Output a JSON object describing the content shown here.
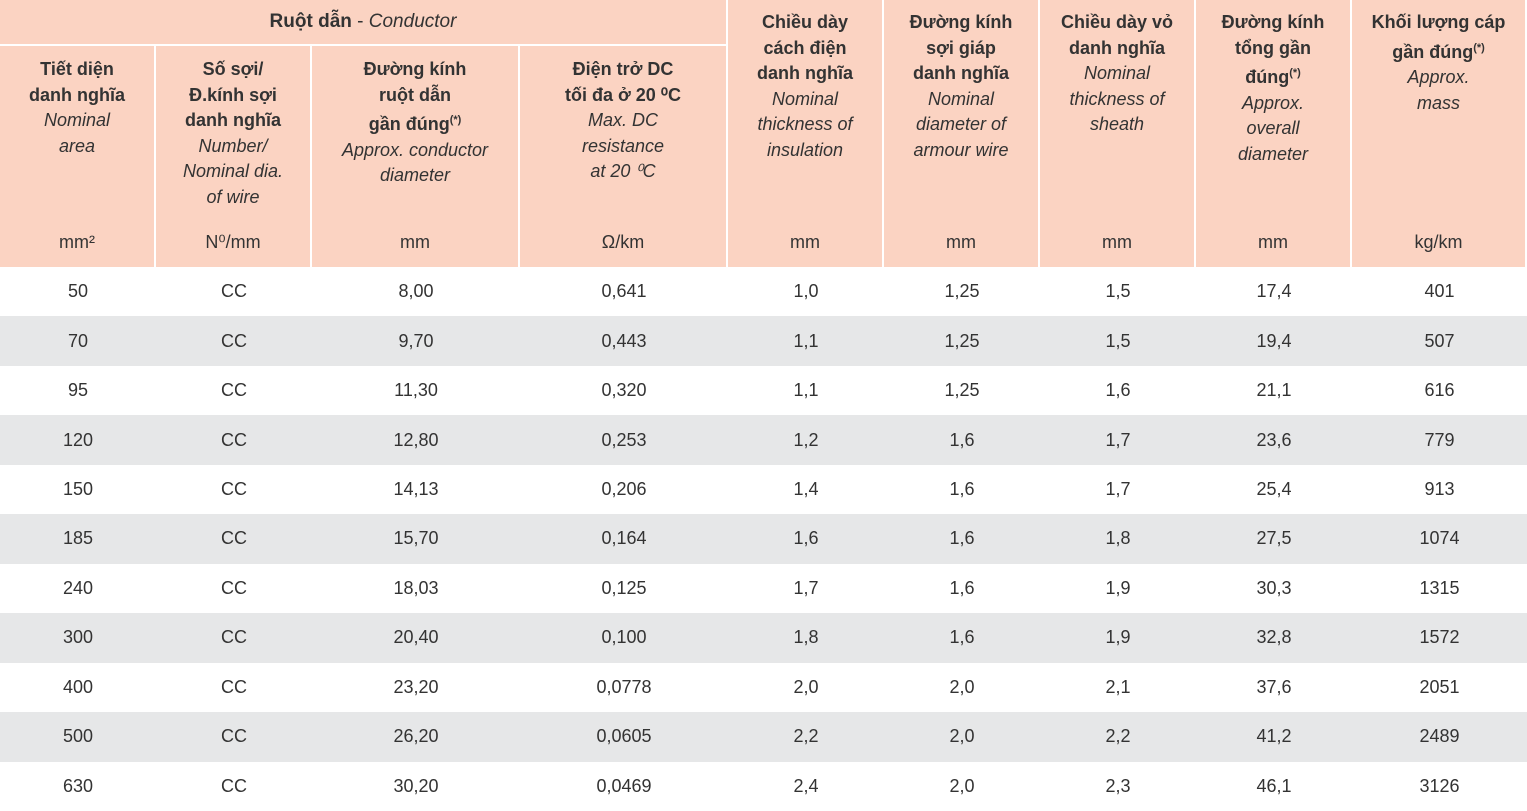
{
  "header": {
    "group": {
      "vi": "Ruột dẫn",
      "separator": "-",
      "en": "Conductor"
    },
    "columns": [
      {
        "vi": [
          "Tiết diện",
          "danh nghĩa"
        ],
        "en": [
          "Nominal",
          "area"
        ],
        "unit": "mm²"
      },
      {
        "vi": [
          "Số sợi/",
          "Đ.kính sợi",
          "danh nghĩa"
        ],
        "en": [
          "Number/",
          "Nominal dia.",
          "of wire"
        ],
        "unit": "N⁰/mm"
      },
      {
        "vi": [
          "Đường kính",
          "ruột dẫn",
          "gần đúng"
        ],
        "sup": "(*)",
        "en": [
          "Approx. conductor",
          "diameter"
        ],
        "unit": "mm"
      },
      {
        "vi": [
          "Điện trở DC",
          "tối đa ở 20 ⁰C"
        ],
        "en": [
          "Max. DC",
          "resistance",
          "at 20 ⁰C"
        ],
        "unit": "Ω/km"
      },
      {
        "vi": [
          "Chiều dày",
          "cách điện",
          "danh nghĩa"
        ],
        "en": [
          "Nominal",
          "thickness of",
          "insulation"
        ],
        "unit": "mm"
      },
      {
        "vi": [
          "Đường kính",
          "sợi giáp",
          "danh nghĩa"
        ],
        "en": [
          "Nominal",
          "diameter of",
          "armour wire"
        ],
        "unit": "mm"
      },
      {
        "vi": [
          "Chiều dày vỏ",
          "danh nghĩa"
        ],
        "en": [
          "Nominal",
          "thickness of",
          "sheath"
        ],
        "unit": "mm"
      },
      {
        "vi": [
          "Đường kính",
          "tổng gần",
          "đúng"
        ],
        "sup": "(*)",
        "en": [
          "Approx.",
          "overall",
          "diameter"
        ],
        "unit": "mm"
      },
      {
        "vi": [
          "Khối lượng cáp",
          "gần đúng"
        ],
        "sup": "(*)",
        "en": [
          "Approx.",
          "mass"
        ],
        "unit": "kg/km"
      }
    ]
  },
  "table": {
    "rows": [
      [
        "50",
        "CC",
        "8,00",
        "0,641",
        "1,0",
        "1,25",
        "1,5",
        "17,4",
        "401"
      ],
      [
        "70",
        "CC",
        "9,70",
        "0,443",
        "1,1",
        "1,25",
        "1,5",
        "19,4",
        "507"
      ],
      [
        "95",
        "CC",
        "11,30",
        "0,320",
        "1,1",
        "1,25",
        "1,6",
        "21,1",
        "616"
      ],
      [
        "120",
        "CC",
        "12,80",
        "0,253",
        "1,2",
        "1,6",
        "1,7",
        "23,6",
        "779"
      ],
      [
        "150",
        "CC",
        "14,13",
        "0,206",
        "1,4",
        "1,6",
        "1,7",
        "25,4",
        "913"
      ],
      [
        "185",
        "CC",
        "15,70",
        "0,164",
        "1,6",
        "1,6",
        "1,8",
        "27,5",
        "1074"
      ],
      [
        "240",
        "CC",
        "18,03",
        "0,125",
        "1,7",
        "1,6",
        "1,9",
        "30,3",
        "1315"
      ],
      [
        "300",
        "CC",
        "20,40",
        "0,100",
        "1,8",
        "1,6",
        "1,9",
        "32,8",
        "1572"
      ],
      [
        "400",
        "CC",
        "23,20",
        "0,0778",
        "2,0",
        "2,0",
        "2,1",
        "37,6",
        "2051"
      ],
      [
        "500",
        "CC",
        "26,20",
        "0,0605",
        "2,2",
        "2,0",
        "2,2",
        "41,2",
        "2489"
      ],
      [
        "630",
        "CC",
        "30,20",
        "0,0469",
        "2,4",
        "2,0",
        "2,3",
        "46,1",
        "3126"
      ]
    ]
  }
}
